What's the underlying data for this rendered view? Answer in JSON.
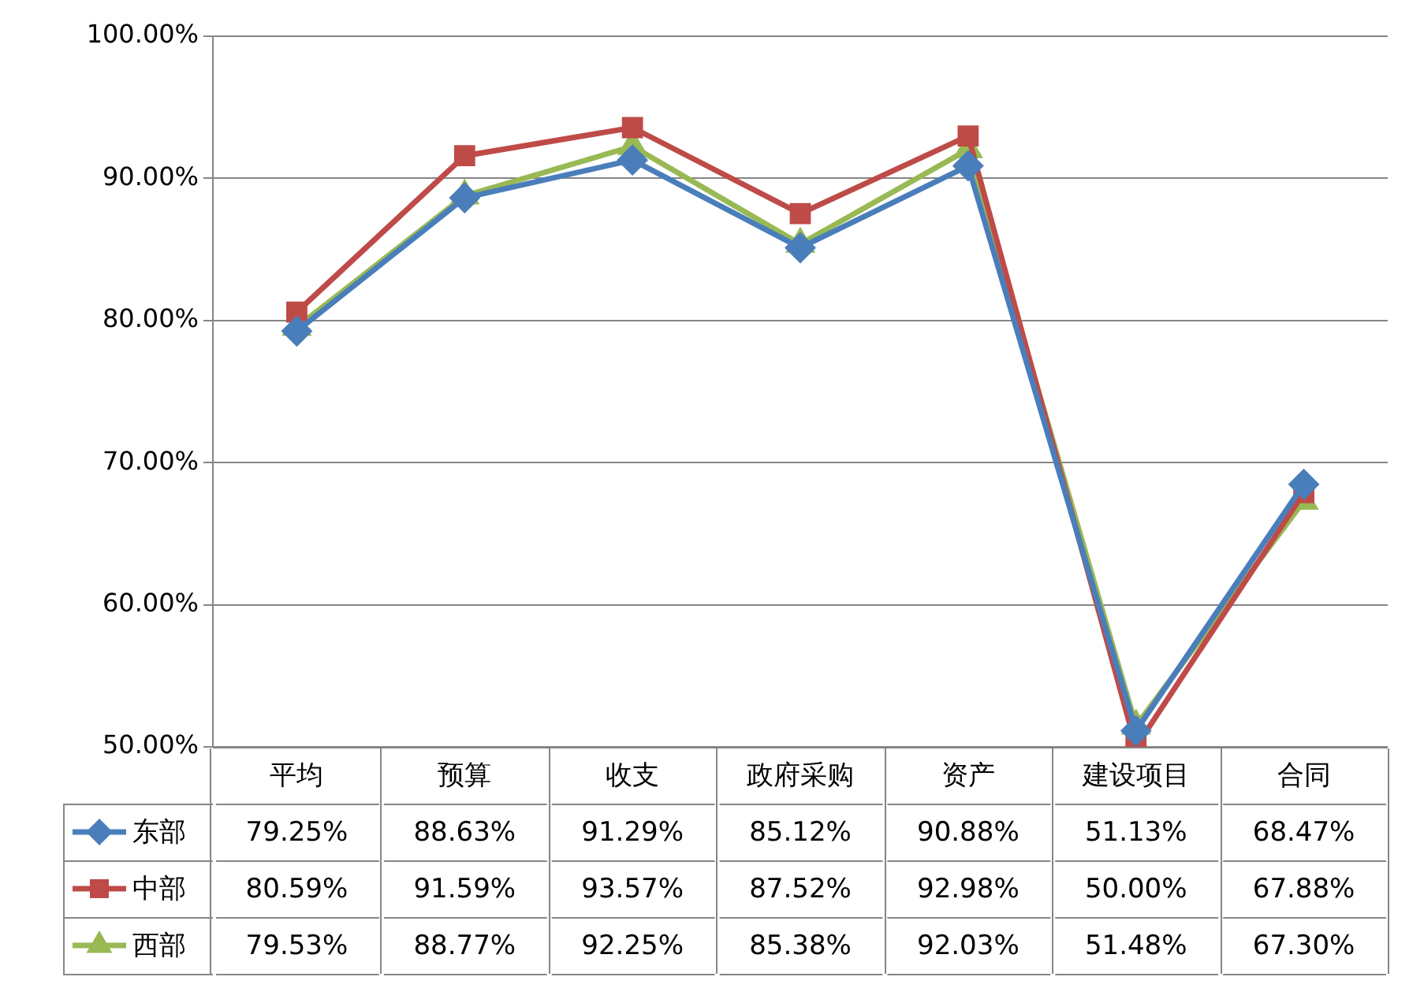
{
  "chart_data": {
    "type": "line",
    "categories": [
      "平均",
      "预算",
      "收支",
      "政府采购",
      "资产",
      "建设项目",
      "合同"
    ],
    "series": [
      {
        "name": "东部",
        "color": "#4a7ebb",
        "marker": "diamond",
        "values": [
          79.25,
          88.63,
          91.29,
          85.12,
          90.88,
          51.13,
          68.47
        ],
        "value_labels": [
          "79.25%",
          "88.63%",
          "91.29%",
          "85.12%",
          "90.88%",
          "51.13%",
          "68.47%"
        ]
      },
      {
        "name": "中部",
        "color": "#be4b48",
        "marker": "square",
        "values": [
          80.59,
          91.59,
          93.57,
          87.52,
          92.98,
          50.0,
          67.88
        ],
        "value_labels": [
          "80.59%",
          "91.59%",
          "93.57%",
          "87.52%",
          "92.98%",
          "50.00%",
          "67.88%"
        ]
      },
      {
        "name": "西部",
        "color": "#98b954",
        "marker": "triangle",
        "values": [
          79.53,
          88.77,
          92.25,
          85.38,
          92.03,
          51.48,
          67.3
        ],
        "value_labels": [
          "79.53%",
          "88.77%",
          "92.25%",
          "85.38%",
          "92.03%",
          "51.48%",
          "67.30%"
        ]
      }
    ],
    "ylim": [
      50,
      100
    ],
    "yticks": [
      {
        "value": 50,
        "label": "50.00%"
      },
      {
        "value": 60,
        "label": "60.00%"
      },
      {
        "value": 70,
        "label": "70.00%"
      },
      {
        "value": 80,
        "label": "80.00%"
      },
      {
        "value": 90,
        "label": "90.00%"
      },
      {
        "value": 100,
        "label": "100.00%"
      }
    ],
    "grid": "y",
    "legend": "bottom left",
    "line_style": "solid"
  }
}
